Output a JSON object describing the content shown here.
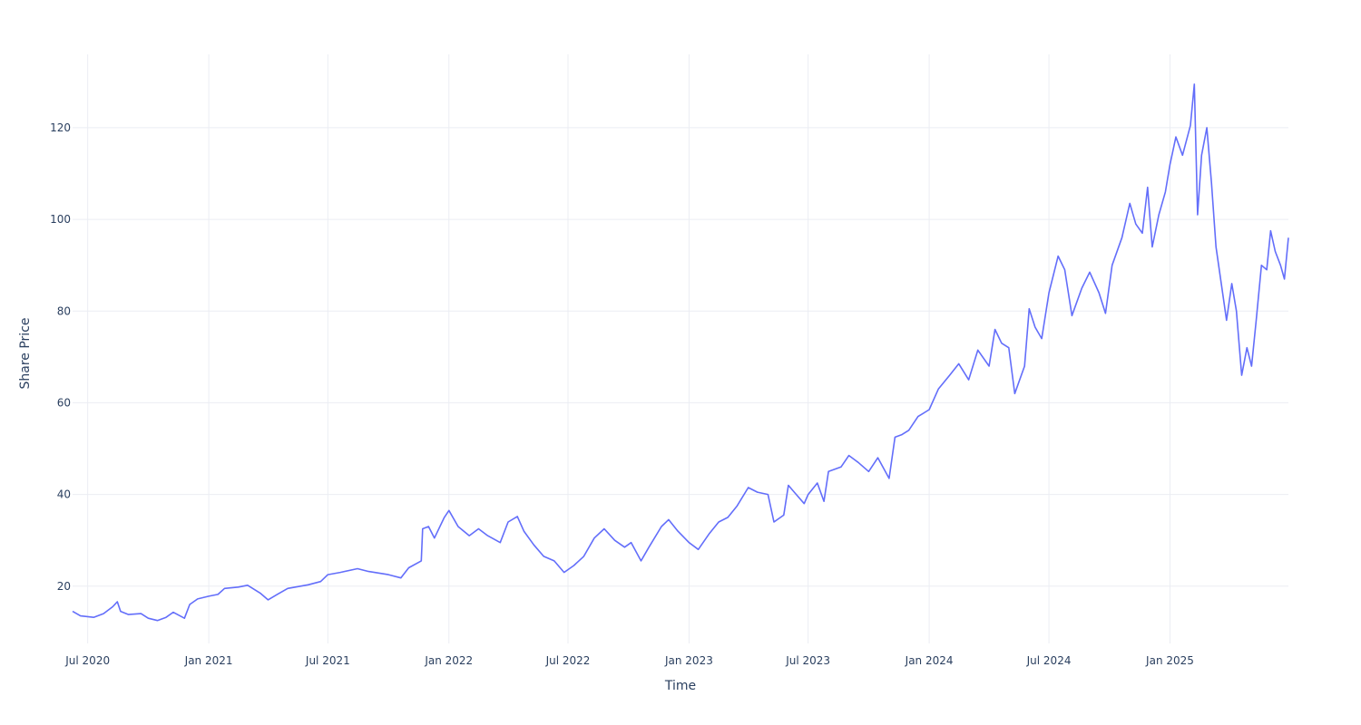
{
  "chart_data": {
    "type": "line",
    "title": "",
    "xlabel": "Time",
    "ylabel": "Share Price",
    "grid": true,
    "legend": "none",
    "xlim": [
      "2020-06-08",
      "2025-06-30"
    ],
    "ylim": [
      7.5,
      136
    ],
    "x_ticks": [
      {
        "date": "2020-07-01",
        "label": "Jul 2020"
      },
      {
        "date": "2021-01-01",
        "label": "Jan 2021"
      },
      {
        "date": "2021-07-01",
        "label": "Jul 2021"
      },
      {
        "date": "2022-01-01",
        "label": "Jan 2022"
      },
      {
        "date": "2022-07-01",
        "label": "Jul 2022"
      },
      {
        "date": "2023-01-01",
        "label": "Jan 2023"
      },
      {
        "date": "2023-07-01",
        "label": "Jul 2023"
      },
      {
        "date": "2024-01-01",
        "label": "Jan 2024"
      },
      {
        "date": "2024-07-01",
        "label": "Jul 2024"
      },
      {
        "date": "2025-01-01",
        "label": "Jan 2025"
      }
    ],
    "y_ticks": [
      {
        "value": 20,
        "label": "20"
      },
      {
        "value": 40,
        "label": "40"
      },
      {
        "value": 60,
        "label": "60"
      },
      {
        "value": 80,
        "label": "80"
      },
      {
        "value": 100,
        "label": "100"
      },
      {
        "value": 120,
        "label": "120"
      }
    ],
    "series": [
      {
        "color": "#636efa",
        "points": [
          [
            "2020-06-08",
            14.5
          ],
          [
            "2020-06-20",
            13.5
          ],
          [
            "2020-07-10",
            13.2
          ],
          [
            "2020-07-25",
            14.0
          ],
          [
            "2020-08-08",
            15.5
          ],
          [
            "2020-08-15",
            16.6
          ],
          [
            "2020-08-20",
            14.5
          ],
          [
            "2020-09-01",
            13.8
          ],
          [
            "2020-09-20",
            14.0
          ],
          [
            "2020-10-01",
            13.0
          ],
          [
            "2020-10-15",
            12.5
          ],
          [
            "2020-10-28",
            13.2
          ],
          [
            "2020-11-08",
            14.3
          ],
          [
            "2020-11-25",
            13.0
          ],
          [
            "2020-12-03",
            16.0
          ],
          [
            "2020-12-15",
            17.2
          ],
          [
            "2021-01-01",
            17.8
          ],
          [
            "2021-01-15",
            18.2
          ],
          [
            "2021-01-25",
            19.5
          ],
          [
            "2021-02-15",
            19.8
          ],
          [
            "2021-03-01",
            20.2
          ],
          [
            "2021-03-20",
            18.5
          ],
          [
            "2021-04-01",
            17.0
          ],
          [
            "2021-04-15",
            18.2
          ],
          [
            "2021-05-01",
            19.5
          ],
          [
            "2021-06-01",
            20.3
          ],
          [
            "2021-06-20",
            21.0
          ],
          [
            "2021-07-01",
            22.5
          ],
          [
            "2021-07-20",
            23.0
          ],
          [
            "2021-08-15",
            23.8
          ],
          [
            "2021-09-01",
            23.2
          ],
          [
            "2021-10-01",
            22.5
          ],
          [
            "2021-10-20",
            21.8
          ],
          [
            "2021-11-01",
            24.0
          ],
          [
            "2021-11-20",
            25.5
          ],
          [
            "2021-11-22",
            32.5
          ],
          [
            "2021-12-01",
            33.0
          ],
          [
            "2021-12-10",
            30.5
          ],
          [
            "2021-12-25",
            35.0
          ],
          [
            "2022-01-01",
            36.5
          ],
          [
            "2022-01-15",
            33.0
          ],
          [
            "2022-02-01",
            31.0
          ],
          [
            "2022-02-15",
            32.5
          ],
          [
            "2022-03-01",
            31.0
          ],
          [
            "2022-03-20",
            29.5
          ],
          [
            "2022-04-01",
            34.0
          ],
          [
            "2022-04-15",
            35.2
          ],
          [
            "2022-04-25",
            32.0
          ],
          [
            "2022-05-10",
            29.0
          ],
          [
            "2022-05-25",
            26.5
          ],
          [
            "2022-06-10",
            25.5
          ],
          [
            "2022-06-25",
            23.0
          ],
          [
            "2022-07-10",
            24.5
          ],
          [
            "2022-07-25",
            26.5
          ],
          [
            "2022-08-10",
            30.5
          ],
          [
            "2022-08-25",
            32.5
          ],
          [
            "2022-09-10",
            30.0
          ],
          [
            "2022-09-25",
            28.5
          ],
          [
            "2022-10-05",
            29.5
          ],
          [
            "2022-10-20",
            25.5
          ],
          [
            "2022-11-01",
            28.5
          ],
          [
            "2022-11-20",
            33.0
          ],
          [
            "2022-12-01",
            34.5
          ],
          [
            "2022-12-15",
            32.0
          ],
          [
            "2023-01-01",
            29.5
          ],
          [
            "2023-01-15",
            28.0
          ],
          [
            "2023-02-01",
            31.5
          ],
          [
            "2023-02-15",
            34.0
          ],
          [
            "2023-03-01",
            35.0
          ],
          [
            "2023-03-15",
            37.5
          ],
          [
            "2023-04-01",
            41.5
          ],
          [
            "2023-04-15",
            40.5
          ],
          [
            "2023-05-01",
            40.0
          ],
          [
            "2023-05-10",
            34.0
          ],
          [
            "2023-05-25",
            35.5
          ],
          [
            "2023-06-01",
            42.0
          ],
          [
            "2023-06-10",
            40.5
          ],
          [
            "2023-06-25",
            38.0
          ],
          [
            "2023-07-01",
            40.0
          ],
          [
            "2023-07-15",
            42.5
          ],
          [
            "2023-07-25",
            38.5
          ],
          [
            "2023-08-01",
            45.0
          ],
          [
            "2023-08-20",
            46.0
          ],
          [
            "2023-09-01",
            48.5
          ],
          [
            "2023-09-15",
            47.0
          ],
          [
            "2023-10-01",
            45.0
          ],
          [
            "2023-10-15",
            48.0
          ],
          [
            "2023-11-01",
            43.5
          ],
          [
            "2023-11-10",
            52.5
          ],
          [
            "2023-11-20",
            53.0
          ],
          [
            "2023-12-01",
            54.0
          ],
          [
            "2023-12-15",
            57.0
          ],
          [
            "2024-01-01",
            58.5
          ],
          [
            "2024-01-15",
            63.0
          ],
          [
            "2024-02-01",
            66.0
          ],
          [
            "2024-02-15",
            68.5
          ],
          [
            "2024-03-01",
            65.0
          ],
          [
            "2024-03-15",
            71.5
          ],
          [
            "2024-04-01",
            68.0
          ],
          [
            "2024-04-10",
            76.0
          ],
          [
            "2024-04-20",
            73.0
          ],
          [
            "2024-05-01",
            72.0
          ],
          [
            "2024-05-10",
            62.0
          ],
          [
            "2024-05-25",
            68.0
          ],
          [
            "2024-06-01",
            80.5
          ],
          [
            "2024-06-10",
            76.5
          ],
          [
            "2024-06-20",
            74.0
          ],
          [
            "2024-07-01",
            84.0
          ],
          [
            "2024-07-15",
            92.0
          ],
          [
            "2024-07-25",
            89.0
          ],
          [
            "2024-08-05",
            79.0
          ],
          [
            "2024-08-20",
            85.0
          ],
          [
            "2024-09-01",
            88.5
          ],
          [
            "2024-09-15",
            84.0
          ],
          [
            "2024-09-25",
            79.5
          ],
          [
            "2024-10-05",
            90.0
          ],
          [
            "2024-10-20",
            96.0
          ],
          [
            "2024-11-01",
            103.5
          ],
          [
            "2024-11-10",
            99.0
          ],
          [
            "2024-11-20",
            97.0
          ],
          [
            "2024-11-28",
            107.0
          ],
          [
            "2024-12-05",
            94.0
          ],
          [
            "2024-12-15",
            101.0
          ],
          [
            "2024-12-25",
            106.0
          ],
          [
            "2025-01-01",
            112.0
          ],
          [
            "2025-01-10",
            118.0
          ],
          [
            "2025-01-20",
            114.0
          ],
          [
            "2025-02-01",
            120.5
          ],
          [
            "2025-02-07",
            129.5
          ],
          [
            "2025-02-12",
            101.0
          ],
          [
            "2025-02-18",
            114.0
          ],
          [
            "2025-02-26",
            120.0
          ],
          [
            "2025-03-05",
            108.0
          ],
          [
            "2025-03-12",
            94.0
          ],
          [
            "2025-03-20",
            86.0
          ],
          [
            "2025-03-28",
            78.0
          ],
          [
            "2025-04-05",
            86.0
          ],
          [
            "2025-04-12",
            80.0
          ],
          [
            "2025-04-20",
            66.0
          ],
          [
            "2025-04-28",
            72.0
          ],
          [
            "2025-05-05",
            68.0
          ],
          [
            "2025-05-12",
            78.0
          ],
          [
            "2025-05-20",
            90.0
          ],
          [
            "2025-05-28",
            89.0
          ],
          [
            "2025-06-03",
            97.5
          ],
          [
            "2025-06-10",
            93.0
          ],
          [
            "2025-06-18",
            90.0
          ],
          [
            "2025-06-24",
            87.0
          ],
          [
            "2025-06-30",
            96.0
          ]
        ]
      }
    ]
  }
}
